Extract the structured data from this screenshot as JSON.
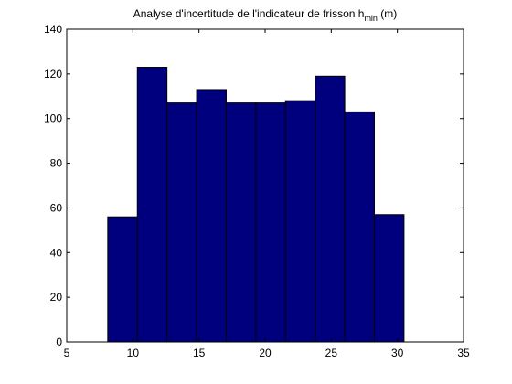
{
  "chart_data": {
    "type": "bar",
    "title_main": "Analyse d'incertitude de l'indicateur de frisson h",
    "title_subscript": "min",
    "title_suffix": " (m)",
    "xlabel": "",
    "ylabel": "",
    "xlim": [
      5,
      35
    ],
    "ylim": [
      0,
      140
    ],
    "xticks": [
      5,
      10,
      15,
      20,
      25,
      30,
      35
    ],
    "yticks": [
      0,
      20,
      40,
      60,
      80,
      100,
      120,
      140
    ],
    "grid": false,
    "bin_edges": [
      8.1,
      10.34,
      12.58,
      14.82,
      17.06,
      19.3,
      21.54,
      23.78,
      26.02,
      28.26,
      30.5
    ],
    "values": [
      56,
      123,
      107,
      113,
      107,
      107,
      108,
      119,
      103,
      57
    ],
    "bar_color": "#00007f",
    "edge_color": "#000000"
  }
}
